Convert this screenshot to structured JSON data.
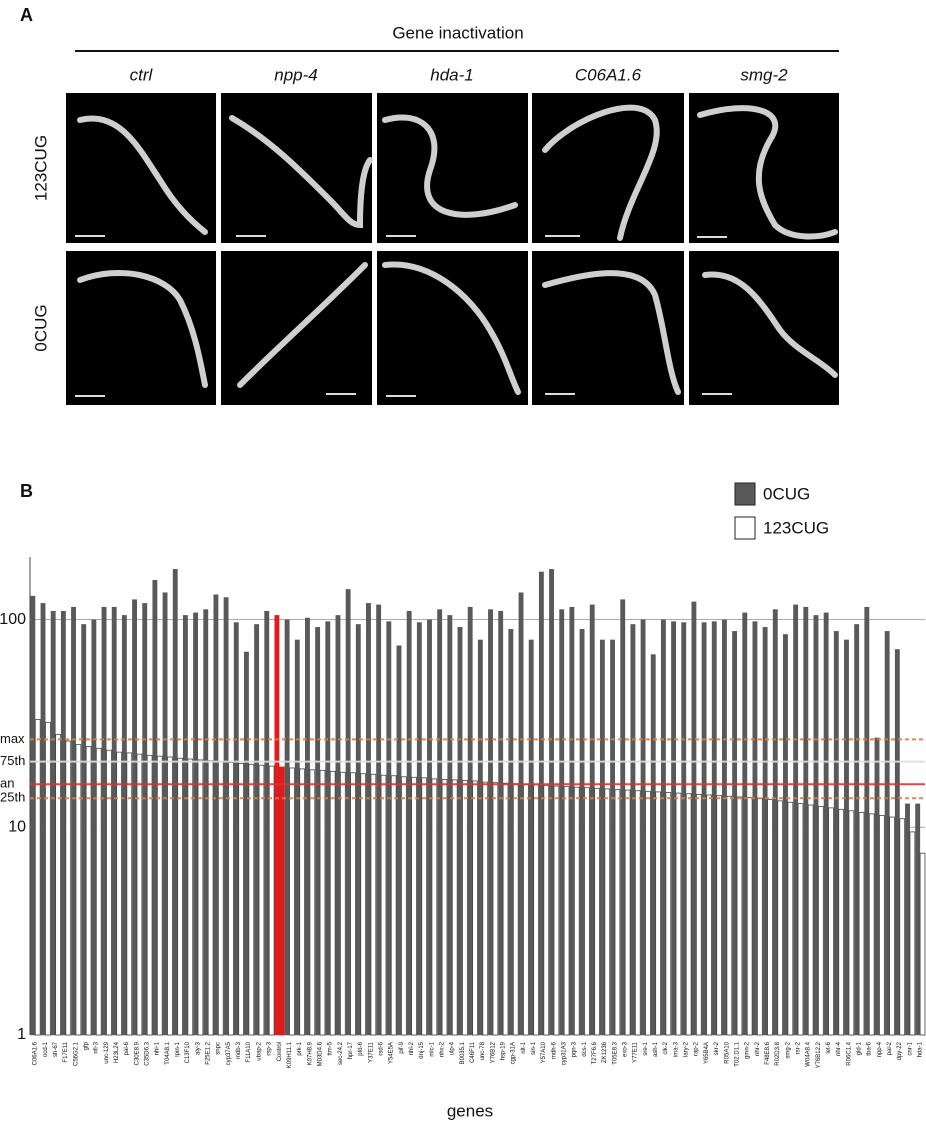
{
  "panel_a": {
    "label": "A",
    "title": "Gene inactivation",
    "columns": [
      "ctrl",
      "npp-4",
      "hda-1",
      "C06A1.6",
      "smg-2"
    ],
    "rows": [
      "123CUG",
      "0CUG"
    ]
  },
  "chart_data": {
    "type": "bar",
    "panel_label": "B",
    "x_label": "genes",
    "log_scale": true,
    "ylim": [
      1,
      200
    ],
    "yticks": [
      1,
      10,
      100
    ],
    "grid": true,
    "legend": "top-right",
    "categories": [
      "C06A1.6",
      "ocd-1",
      "sh-67",
      "F17E11",
      "C56G2.1",
      "gfp",
      "nfi-3",
      "unc-129",
      "H23L24",
      "pal-6",
      "C30E8.9",
      "C35D6.3",
      "nhi-1",
      "T04A8.1",
      "lpin-1",
      "C13F10",
      "aly-3",
      "F25E1.2",
      "snpc",
      "cyp37A5",
      "mdb-3",
      "F11A10",
      "ubap-2",
      "rsp-3",
      "Control",
      "K09H11.1",
      "prk-1",
      "K07H8.9",
      "M03D4.6",
      "ttm-5",
      "sec-24.2",
      "hpr-17",
      "pfd-6",
      "Y37E11",
      "rsd-6",
      "Y54E5A",
      "pif-9",
      "nhl-2",
      "dnj-15",
      "mlc-1",
      "nhx-2",
      "ulp-4",
      "B0035.1",
      "C46F11",
      "unc-78",
      "Y76B12",
      "hsp-19",
      "cgp-31A",
      "nlt-1",
      "sin-1",
      "Y57A10",
      "mdh-6",
      "cyp31A3",
      "pqn-3",
      "dcs-1",
      "T27F6.6",
      "ZK1236",
      "T05E8.3",
      "exo-3",
      "Y77E11",
      "sre-1",
      "ash-1",
      "clk-2",
      "ima-3",
      "lary-2",
      "rap-2",
      "Y65B4A",
      "skr-2",
      "R05A10",
      "T02.D1.1",
      "gmn-2",
      "nhr-2",
      "F48E8.6",
      "R02D3.8",
      "smg-2",
      "rsr-2",
      "W04A8.4",
      "Y76B12.2",
      "let-6",
      "nhr-4",
      "R06C1.4",
      "gld-1",
      "tba-6",
      "npp-4",
      "pal-2",
      "dpy-22",
      "cnr-1",
      "hda-1"
    ],
    "series": [
      {
        "name": "0CUG",
        "color": "#595959",
        "values": [
          130,
          120,
          110,
          110,
          115,
          95,
          100,
          115,
          115,
          105,
          125,
          120,
          155,
          135,
          175,
          105,
          108,
          112,
          132,
          128,
          97,
          70,
          95,
          110,
          105,
          100,
          80,
          102,
          92,
          98,
          105,
          140,
          95,
          120,
          118,
          98,
          75,
          110,
          97,
          100,
          112,
          105,
          92,
          115,
          80,
          112,
          110,
          90,
          135,
          80,
          170,
          175,
          112,
          115,
          90,
          118,
          80,
          80,
          125,
          95,
          100,
          68,
          100,
          98,
          97,
          122,
          97,
          98,
          100,
          88,
          108,
          98,
          92,
          112,
          85,
          118,
          115,
          105,
          108,
          88,
          80,
          95,
          115,
          27,
          88,
          72,
          13,
          13
        ]
      },
      {
        "name": "123CUG",
        "color": "#ffffff",
        "values": [
          33,
          32,
          28,
          26,
          25,
          24.5,
          24,
          23.5,
          23,
          22.8,
          22.5,
          22.2,
          22,
          21.8,
          21.5,
          21.3,
          21.1,
          20.9,
          20.7,
          20.5,
          20.3,
          20.1,
          19.9,
          19.7,
          19.5,
          19.3,
          19.1,
          18.9,
          18.8,
          18.6,
          18.4,
          18.3,
          18.1,
          18,
          17.8,
          17.7,
          17.5,
          17.4,
          17.3,
          17.1,
          17,
          16.9,
          16.8,
          16.7,
          16.5,
          16.4,
          16.3,
          16.2,
          16.1,
          16,
          15.9,
          15.8,
          15.7,
          15.6,
          15.5,
          15.4,
          15.3,
          15.2,
          15.1,
          15,
          14.9,
          14.8,
          14.7,
          14.6,
          14.5,
          14.4,
          14.3,
          14.2,
          14.1,
          14,
          13.9,
          13.8,
          13.6,
          13.4,
          13.2,
          13,
          12.8,
          12.6,
          12.4,
          12.2,
          12,
          11.8,
          11.6,
          11.4,
          11.2,
          11,
          9.5,
          7.5
        ]
      }
    ],
    "highlight": {
      "category_index": 24,
      "color": "#e01b1b"
    },
    "reference_lines": [
      {
        "label": "max",
        "value": 26.5,
        "color": "#e07b39",
        "dash": true
      },
      {
        "label": "75th",
        "value": 20.7,
        "color": "#dddddd",
        "dash": false
      },
      {
        "label": "an",
        "value": 16.1,
        "color": "#e03030",
        "dash": false
      },
      {
        "label": "25th",
        "value": 13.8,
        "color": "#e07b39",
        "dash": true
      }
    ]
  }
}
